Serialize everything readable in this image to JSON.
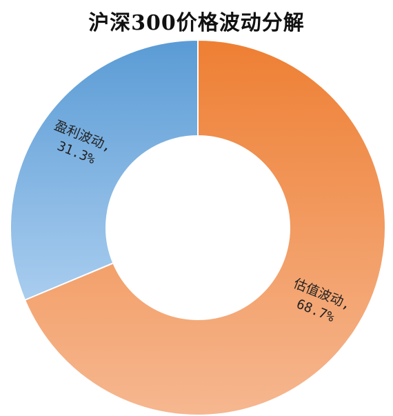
{
  "chart_data": {
    "type": "pie",
    "title": "沪深300价格波动分解",
    "donut": true,
    "slices": [
      {
        "label": "估值波动",
        "percent_text": "68.7%",
        "value": 68.7,
        "color_start": "#ee7f33",
        "color_end": "#f6b790"
      },
      {
        "label": "盈利波动",
        "percent_text": "31.3%",
        "value": 31.3,
        "color_start": "#5a9bd5",
        "color_end": "#a9cdef"
      }
    ],
    "legend": "none"
  }
}
